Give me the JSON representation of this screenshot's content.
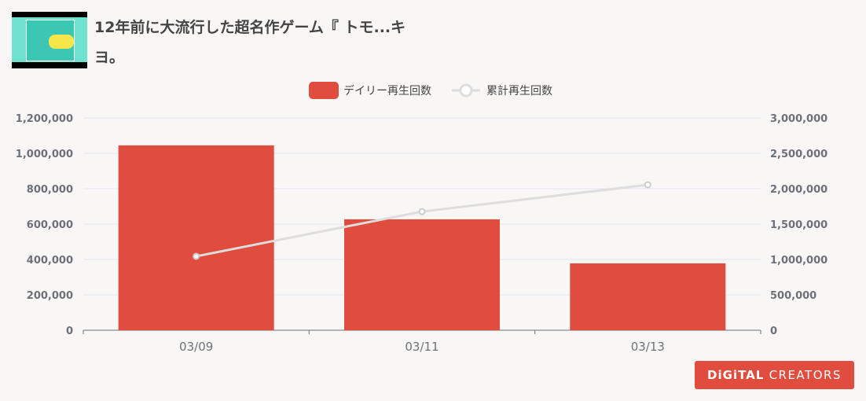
{
  "header": {
    "title": "12年前に大流行した超名作ゲーム『 トモ...キヨ。",
    "thumbnail": "game-thumbnail"
  },
  "logo": {
    "part1": "DiGiTAL",
    "part2": "CREATORS"
  },
  "chart_data": {
    "type": "bar+line",
    "categories": [
      "03/09",
      "03/11",
      "03/13"
    ],
    "series": [
      {
        "name": "デイリー再生回数",
        "type": "bar",
        "axis": "left",
        "color": "#e04c3e",
        "values": [
          1045000,
          627000,
          378000
        ]
      },
      {
        "name": "累計再生回数",
        "type": "line",
        "axis": "right",
        "color": "#dddddd",
        "values": [
          1045000,
          1677000,
          2055000
        ]
      }
    ],
    "left_axis": {
      "ylim": [
        0,
        1200000
      ],
      "ticks": [
        "0",
        "200,000",
        "400,000",
        "600,000",
        "800,000",
        "1,000,000",
        "1,200,000"
      ]
    },
    "right_axis": {
      "ylim": [
        0,
        3000000
      ],
      "ticks": [
        "0",
        "500,000",
        "1,000,000",
        "1,500,000",
        "2,000,000",
        "2,500,000",
        "3,000,000"
      ]
    },
    "legend": "top-center",
    "grid": true
  }
}
